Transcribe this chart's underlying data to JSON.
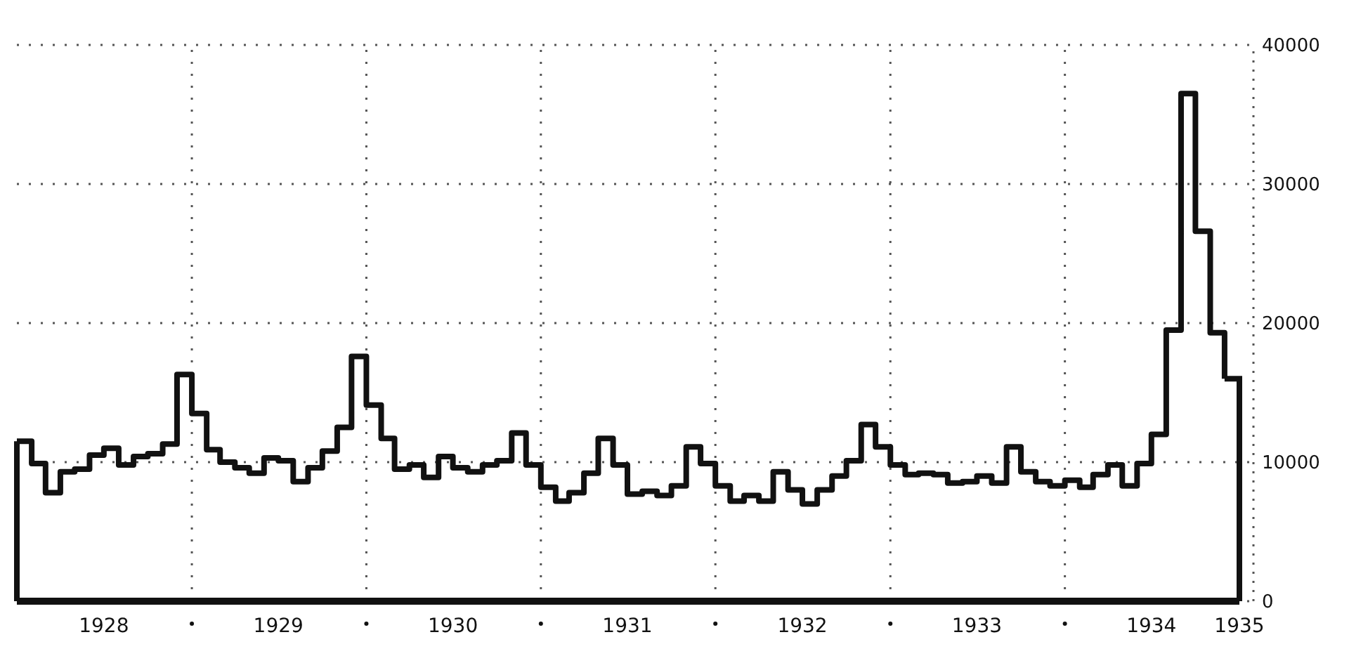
{
  "chart_data": {
    "type": "step",
    "color": "#111111",
    "x": [
      "1928-01",
      "1928-02",
      "1928-03",
      "1928-04",
      "1928-05",
      "1928-06",
      "1928-07",
      "1928-08",
      "1928-09",
      "1928-10",
      "1928-11",
      "1928-12",
      "1929-01",
      "1929-02",
      "1929-03",
      "1929-04",
      "1929-05",
      "1929-06",
      "1929-07",
      "1929-08",
      "1929-09",
      "1929-10",
      "1929-11",
      "1929-12",
      "1930-01",
      "1930-02",
      "1930-03",
      "1930-04",
      "1930-05",
      "1930-06",
      "1930-07",
      "1930-08",
      "1930-09",
      "1930-10",
      "1930-11",
      "1930-12",
      "1931-01",
      "1931-02",
      "1931-03",
      "1931-04",
      "1931-05",
      "1931-06",
      "1931-07",
      "1931-08",
      "1931-09",
      "1931-10",
      "1931-11",
      "1931-12",
      "1932-01",
      "1932-02",
      "1932-03",
      "1932-04",
      "1932-05",
      "1932-06",
      "1932-07",
      "1932-08",
      "1932-09",
      "1932-10",
      "1932-11",
      "1932-12",
      "1933-01",
      "1933-02",
      "1933-03",
      "1933-04",
      "1933-05",
      "1933-06",
      "1933-07",
      "1933-08",
      "1933-09",
      "1933-10",
      "1933-11",
      "1933-12",
      "1934-01",
      "1934-02",
      "1934-03",
      "1934-04",
      "1934-05",
      "1934-06",
      "1934-07",
      "1934-08",
      "1934-09",
      "1934-10",
      "1934-11",
      "1934-12"
    ],
    "values": [
      11500,
      9900,
      7800,
      9300,
      9500,
      10500,
      11000,
      9800,
      10400,
      10600,
      11300,
      16300,
      13500,
      10900,
      10000,
      9600,
      9200,
      10300,
      10100,
      8600,
      9600,
      10800,
      12500,
      17600,
      14100,
      11700,
      9500,
      9800,
      8900,
      10400,
      9600,
      9300,
      9800,
      10100,
      12100,
      9800,
      8200,
      7200,
      7800,
      9200,
      11700,
      9800,
      7700,
      7900,
      7600,
      8300,
      11100,
      9900,
      8300,
      7200,
      7600,
      7200,
      9300,
      8000,
      7000,
      8000,
      9000,
      10100,
      12700,
      11100,
      9800,
      9100,
      9200,
      9100,
      8500,
      8600,
      9000,
      8500,
      11100,
      9300,
      8600,
      8300,
      8700,
      8200,
      9100,
      9800,
      8300,
      9900,
      12000,
      19500,
      36500,
      26600,
      19300,
      16000
    ],
    "xlim": [
      "1928-01",
      "1935-01"
    ],
    "xticks": [
      {
        "value": "1928-07",
        "label": "1928"
      },
      {
        "value": "1929-01",
        "label": null
      },
      {
        "value": "1929-07",
        "label": "1929"
      },
      {
        "value": "1930-01",
        "label": null
      },
      {
        "value": "1930-07",
        "label": "1930"
      },
      {
        "value": "1931-01",
        "label": null
      },
      {
        "value": "1931-07",
        "label": "1931"
      },
      {
        "value": "1932-01",
        "label": null
      },
      {
        "value": "1932-07",
        "label": "1932"
      },
      {
        "value": "1933-01",
        "label": null
      },
      {
        "value": "1933-07",
        "label": "1933"
      },
      {
        "value": "1934-01",
        "label": null
      },
      {
        "value": "1934-07",
        "label": "1934"
      },
      {
        "value": "1935-01",
        "label": "1935"
      }
    ],
    "ylim": [
      0,
      40000
    ],
    "yticks": [
      0,
      10000,
      20000,
      30000,
      40000
    ],
    "grid": true
  }
}
